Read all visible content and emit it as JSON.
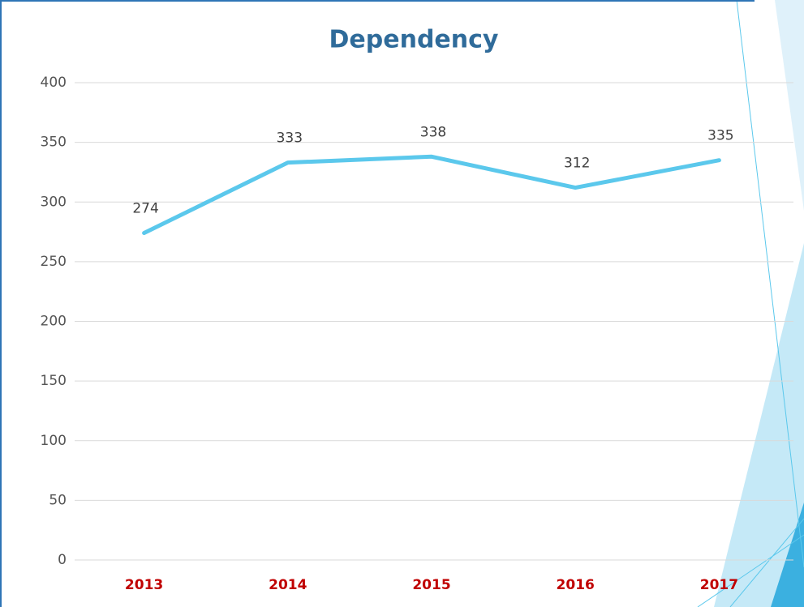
{
  "chart_data": {
    "type": "line",
    "title": "Dependency",
    "categories": [
      "2013",
      "2014",
      "2015",
      "2016",
      "2017"
    ],
    "series": [
      {
        "name": "Dependency",
        "color": "#5bc8ec",
        "values": [
          274,
          333,
          338,
          312,
          335
        ]
      }
    ],
    "ylim": [
      0,
      400
    ],
    "yticks": [
      0,
      50,
      100,
      150,
      200,
      250,
      300,
      350,
      400
    ],
    "grid": true
  }
}
